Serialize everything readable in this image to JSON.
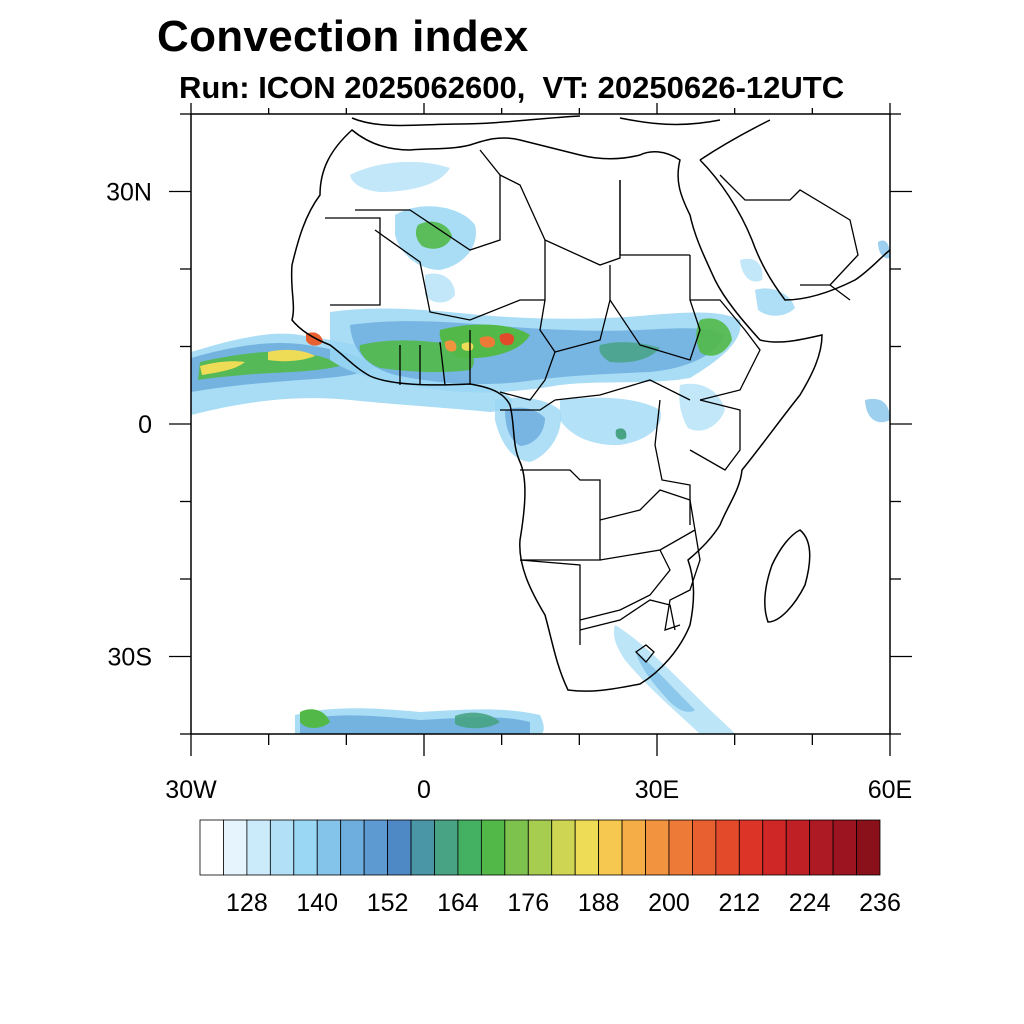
{
  "header": {
    "title": "Convection index",
    "subtitle": "Run: ICON 2025062600,  VT: 20250626-12UTC"
  },
  "map": {
    "region": "Africa",
    "projection": "cylindrical equidistant",
    "extent": {
      "lon_min": -30,
      "lon_max": 60,
      "lat_min": -40,
      "lat_max": 40
    },
    "lat_ticks": [
      {
        "value": 30,
        "label": "30N"
      },
      {
        "value": 0,
        "label": "0"
      },
      {
        "value": -30,
        "label": "30S"
      }
    ],
    "lon_ticks": [
      {
        "value": -30,
        "label": "30W"
      },
      {
        "value": 0,
        "label": "0"
      },
      {
        "value": 30,
        "label": "30E"
      },
      {
        "value": 60,
        "label": "60E"
      }
    ],
    "minor_tick_step_deg": 10,
    "background_color": "#ffffff",
    "coastline_color": "#000000"
  },
  "colorbar": {
    "labels": [
      "128",
      "140",
      "152",
      "164",
      "176",
      "188",
      "200",
      "212",
      "224",
      "236"
    ],
    "colors": [
      "#ffffff",
      "#e6f5fd",
      "#cbebfa",
      "#b2e1f7",
      "#9ad7f4",
      "#84c3ea",
      "#6eaede",
      "#5e9ad2",
      "#4f89c5",
      "#4a96a6",
      "#47a384",
      "#44b062",
      "#52b948",
      "#7cc24c",
      "#a6cc50",
      "#cdd553",
      "#eedc57",
      "#f6c84f",
      "#f5ae47",
      "#f2943f",
      "#ee7a37",
      "#e8602f",
      "#e24a2a",
      "#dc3427",
      "#cf2626",
      "#be2025",
      "#ad1a23",
      "#9c1420",
      "#8a1119"
    ]
  }
}
